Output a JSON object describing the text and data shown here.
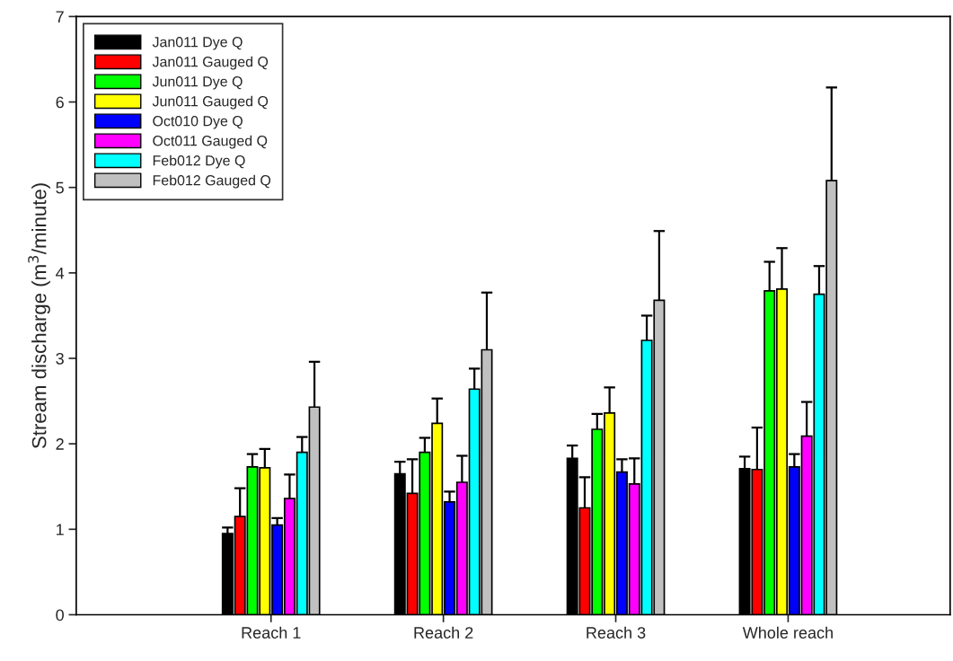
{
  "chart_data": {
    "type": "bar",
    "ylabel": "Stream discharge (m$^{3}$/minute)",
    "categories": [
      "Reach 1",
      "Reach 2",
      "Reach 3",
      "Whole reach"
    ],
    "series": [
      {
        "name": "Jan011 Dye Q",
        "color": "#000000",
        "values": [
          0.95,
          1.65,
          1.83,
          1.71
        ],
        "errors": [
          [
            0.95,
            1.02
          ],
          [
            1.65,
            1.79
          ],
          [
            1.83,
            1.98
          ],
          [
            1.71,
            1.85
          ]
        ]
      },
      {
        "name": "Jan011 Gauged Q",
        "color": "#ff0000",
        "values": [
          1.15,
          1.42,
          1.25,
          1.7
        ],
        "errors": [
          [
            1.15,
            1.48
          ],
          [
            1.42,
            1.82
          ],
          [
            1.25,
            1.61
          ],
          [
            1.7,
            2.19
          ]
        ]
      },
      {
        "name": "Jun011 Dye Q",
        "color": "#00ff00",
        "values": [
          1.73,
          1.9,
          2.17,
          3.79
        ],
        "errors": [
          [
            1.73,
            1.88
          ],
          [
            1.9,
            2.07
          ],
          [
            2.17,
            2.35
          ],
          [
            3.79,
            4.13
          ]
        ]
      },
      {
        "name": "Jun011 Gauged Q",
        "color": "#ffff00",
        "values": [
          1.72,
          2.24,
          2.36,
          3.81
        ],
        "errors": [
          [
            1.72,
            1.94
          ],
          [
            2.24,
            2.53
          ],
          [
            2.36,
            2.66
          ],
          [
            3.81,
            4.29
          ]
        ]
      },
      {
        "name": "Oct010 Dye Q",
        "color": "#0000ff",
        "values": [
          1.05,
          1.32,
          1.67,
          1.73
        ],
        "errors": [
          [
            1.05,
            1.13
          ],
          [
            1.32,
            1.44
          ],
          [
            1.67,
            1.82
          ],
          [
            1.73,
            1.88
          ]
        ]
      },
      {
        "name": "Oct011 Gauged Q",
        "color": "#ff00ff",
        "values": [
          1.36,
          1.55,
          1.53,
          2.09
        ],
        "errors": [
          [
            1.36,
            1.64
          ],
          [
            1.55,
            1.86
          ],
          [
            1.53,
            1.83
          ],
          [
            2.09,
            2.49
          ]
        ]
      },
      {
        "name": "Feb012 Dye Q",
        "color": "#00ffff",
        "values": [
          1.9,
          2.64,
          3.21,
          3.75
        ],
        "errors": [
          [
            1.9,
            2.08
          ],
          [
            2.64,
            2.88
          ],
          [
            3.21,
            3.5
          ],
          [
            3.75,
            4.08
          ]
        ]
      },
      {
        "name": "Feb012 Gauged Q",
        "color": "#c0c0c0",
        "values": [
          2.43,
          3.1,
          3.68,
          5.08
        ],
        "errors": [
          [
            2.43,
            2.96
          ],
          [
            3.1,
            3.77
          ],
          [
            3.68,
            4.49
          ],
          [
            5.08,
            6.17
          ]
        ]
      }
    ],
    "ylim": [
      0,
      7
    ],
    "yticks": [
      0,
      1,
      2,
      3,
      4,
      5,
      6,
      7
    ],
    "grid": false,
    "legend": "top left"
  }
}
